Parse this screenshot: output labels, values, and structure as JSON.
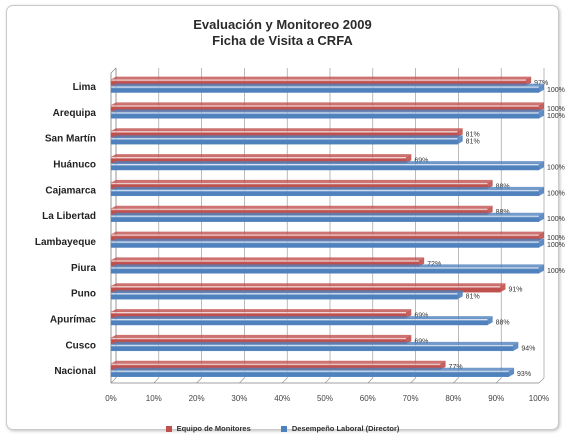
{
  "colors": {
    "series1": "#c0504d",
    "series2": "#4f81bd",
    "gridline": "#8c8c8c",
    "axis": "#808080"
  },
  "chart_data": {
    "type": "bar",
    "orientation": "horizontal",
    "title": "Evaluación y Monitoreo 2009",
    "subtitle": "Ficha de Visita a CRFA",
    "categories": [
      "Lima",
      "Arequipa",
      "San Martín",
      "Huánuco",
      "Cajamarca",
      "La Libertad",
      "Lambayeque",
      "Piura",
      "Puno",
      "Apurímac",
      "Cusco",
      "Nacional"
    ],
    "series": [
      {
        "name": "Equipo de Monitores",
        "values": [
          97,
          100,
          81,
          69,
          88,
          88,
          100,
          72,
          91,
          69,
          69,
          77
        ],
        "labels": [
          "97%",
          "100%",
          "81%",
          "69%",
          "88%",
          "88%",
          "100%",
          "72%",
          "91%",
          "69%",
          "69%",
          "77%"
        ]
      },
      {
        "name": "Desempeño Laboral (Director)",
        "values": [
          100,
          100,
          81,
          100,
          100,
          100,
          100,
          100,
          81,
          88,
          94,
          93
        ],
        "labels": [
          "100%",
          "100%",
          "81%",
          "100%",
          "100%",
          "100%",
          "100%",
          "100%",
          "81%",
          "88%",
          "94%",
          "93%"
        ]
      }
    ],
    "xticks": [
      "0%",
      "10%",
      "20%",
      "30%",
      "40%",
      "50%",
      "60%",
      "70%",
      "80%",
      "90%",
      "100%"
    ],
    "xlim": [
      0,
      100
    ],
    "grid": true,
    "legend_position": "bottom"
  }
}
